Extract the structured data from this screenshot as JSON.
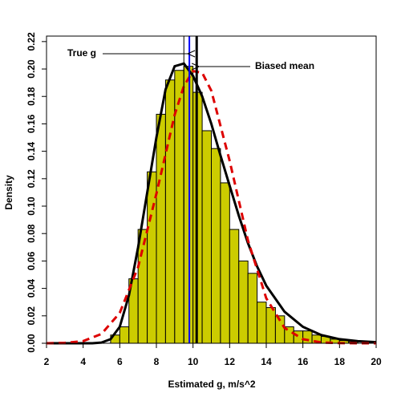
{
  "chart_data": {
    "type": "histogram",
    "xlabel": "Estimated g, m/s^2",
    "ylabel": "Density",
    "bins": [
      5.5,
      6,
      6.5,
      7,
      7.5,
      8,
      8.5,
      9,
      9.5,
      10,
      10.5,
      11,
      11.5,
      12,
      12.5,
      13,
      13.5,
      14,
      14.5,
      15,
      15.5,
      16,
      16.5,
      17,
      17.5,
      18,
      18.5,
      19
    ],
    "values": [
      0.006,
      0.012,
      0.047,
      0.083,
      0.125,
      0.167,
      0.192,
      0.199,
      0.202,
      0.183,
      0.155,
      0.142,
      0.117,
      0.083,
      0.06,
      0.051,
      0.03,
      0.026,
      0.02,
      0.012,
      0.009,
      0.009,
      0.006,
      0.005,
      0.003,
      0.002,
      0.001
    ],
    "color": "#cccc00",
    "curves": [
      {
        "color": "#000000",
        "dash": false,
        "x": [
          2,
          3,
          4,
          4.5,
          5,
          5.5,
          6,
          6.5,
          7,
          7.5,
          8,
          8.5,
          9,
          9.5,
          10,
          10.5,
          11,
          11.5,
          12,
          12.5,
          13,
          13.5,
          14,
          15,
          16,
          17,
          18,
          19,
          20
        ],
        "values": [
          0,
          0,
          0,
          0,
          0.0005,
          0.003,
          0.012,
          0.035,
          0.07,
          0.11,
          0.15,
          0.185,
          0.202,
          0.204,
          0.195,
          0.18,
          0.16,
          0.137,
          0.115,
          0.093,
          0.073,
          0.056,
          0.042,
          0.023,
          0.012,
          0.006,
          0.003,
          0.0015,
          0.0008
        ]
      },
      {
        "color": "#dd0000",
        "dash": true,
        "x": [
          2,
          3,
          4,
          5,
          6,
          7,
          8,
          9,
          9.5,
          10,
          10.5,
          11,
          12,
          13,
          14,
          15,
          16,
          17,
          18,
          19,
          20
        ],
        "values": [
          0,
          0.0003,
          0.0016,
          0.0068,
          0.0221,
          0.0556,
          0.109,
          0.1666,
          0.1876,
          0.1985,
          0.1973,
          0.1842,
          0.1331,
          0.075,
          0.0328,
          0.0112,
          0.003,
          0.0006,
          0.0001,
          0,
          0
        ]
      }
    ],
    "vlines": [
      {
        "x": 9.5,
        "color": "#000000",
        "width": 1
      },
      {
        "x": 9.8,
        "color": "#0000ff",
        "width": 2,
        "label": "True g"
      },
      {
        "x": 10.2,
        "color": "#000000",
        "width": 3,
        "label": "Biased mean"
      }
    ],
    "xlim": [
      2,
      20
    ],
    "xticks": [
      2,
      4,
      6,
      8,
      10,
      12,
      14,
      16,
      18,
      20
    ],
    "ylim": [
      0,
      0.224
    ],
    "yticks": [
      {
        "value": 0,
        "label": "0.00"
      },
      0.02,
      0.04,
      0.06,
      0.08,
      {
        "value": 0.1,
        "label": "0.10"
      },
      0.12,
      0.14,
      0.16,
      0.18,
      {
        "value": 0.2,
        "label": "0.20"
      },
      0.22
    ]
  }
}
